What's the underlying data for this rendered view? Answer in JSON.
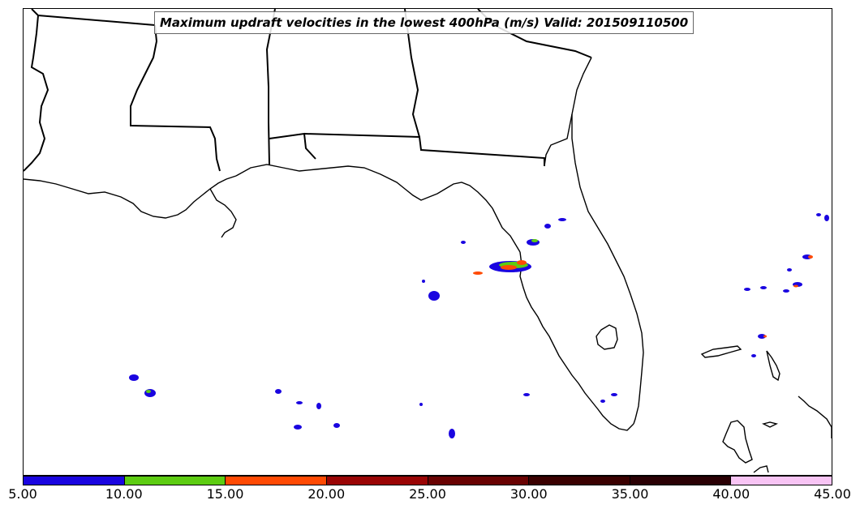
{
  "title": "Maximum updraft velocities in the lowest 400hPa (m/s) Valid: 201509110500",
  "colorbar": {
    "ticks": [
      "5.00",
      "10.00",
      "15.00",
      "20.00",
      "25.00",
      "30.00",
      "35.00",
      "40.00",
      "45.00"
    ],
    "colors": [
      "#1a05e0",
      "#5dcc12",
      "#ff4a03",
      "#9a0505",
      "#690202",
      "#3a0000",
      "#2a0004",
      "#f8c4f4",
      "#fde6fb"
    ]
  },
  "legend_colors": {
    "coastline": "#000000",
    "state_border": "#000000"
  }
}
